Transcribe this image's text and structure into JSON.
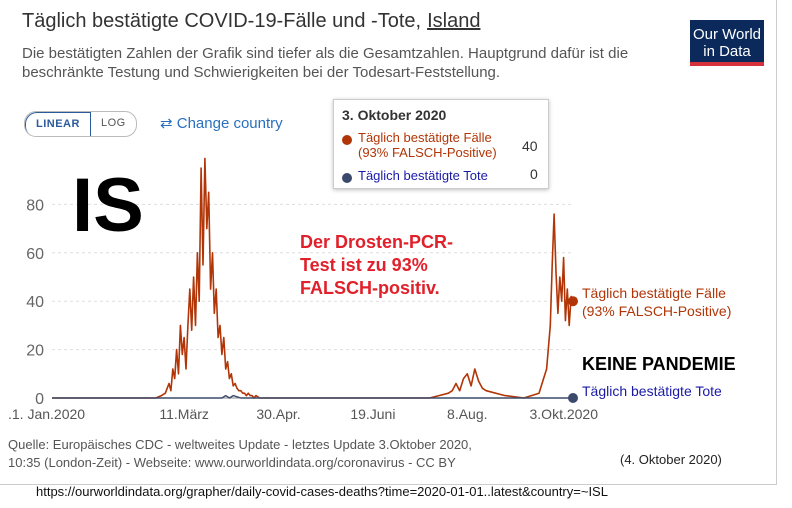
{
  "header": {
    "title": "Täglich bestätigte COVID-19-Fälle und -Tote,",
    "country": "Island",
    "subtitle": "Die bestätigten Zahlen der Grafik sind tiefer als die Gesamtzahlen. Hauptgrund dafür ist die beschränkte Testung und Schwierigkeiten bei der Todesart-Feststellung.",
    "logo_line1": "Our World",
    "logo_line2": "in Data"
  },
  "controls": {
    "linear_label": "LINEAR",
    "log_label": "LOG",
    "change_country_icon": "swap-arrows-icon",
    "change_country_label": "Change country"
  },
  "tooltip": {
    "date": "3. Oktober 2020",
    "cases_label_1": "Täglich bestätigte Fälle",
    "cases_label_2": "(93% FALSCH-Positive)",
    "cases_value": "40",
    "deaths_label": "Täglich bestätigte Tote",
    "deaths_value": "0"
  },
  "overlays": {
    "country_code": "IS",
    "annotation_1": "Der Drosten-PCR-",
    "annotation_2": "Test ist zu 93%",
    "annotation_3": "FALSCH-positiv.",
    "keine_pandemie": "KEINE PANDEMIE",
    "end_label_cases_1": "Täglich bestätigte Fälle",
    "end_label_cases_2": "(93% FALSCH-Positive)",
    "end_label_deaths": "Täglich bestätigte Tote"
  },
  "footer": {
    "source_line1": "Quelle: Europäisches CDC - weltweites Update - letztes Update 3.Oktober 2020,",
    "source_line2": "10:35 (London-Zeit) - Webseite: www.ourworldindata.org/coronavirus - CC BY",
    "retrieved": "(4. Oktober 2020)",
    "url": "https://ourworldindata.org/grapher/daily-covid-cases-deaths?time=2020-01-01..latest&country=~ISL"
  },
  "colors": {
    "cases": "#b13507",
    "deaths": "#3b4a6b",
    "annotation": "#e0202a"
  },
  "chart_data": {
    "type": "line",
    "ylim": [
      0,
      100
    ],
    "y_ticks": [
      "0",
      "20",
      "40",
      "60",
      "80"
    ],
    "y_tick_values": [
      0,
      20,
      40,
      60,
      80
    ],
    "x_tick_labels": [
      ".1. Jan.2020",
      "11.März",
      "30.Apr.",
      "19.Juni",
      "8.Aug.",
      "3.Okt.2020"
    ],
    "x_tick_days": [
      0,
      70,
      120,
      170,
      220,
      276
    ],
    "x_range_days": [
      0,
      276
    ],
    "grid": "horizontal dashed",
    "series": [
      {
        "name": "Täglich bestätigte Fälle (93% FALSCH-Positive)",
        "days": [
          0,
          55,
          58,
          60,
          62,
          63,
          64,
          65,
          66,
          67,
          68,
          69,
          70,
          71,
          72,
          73,
          74,
          75,
          76,
          77,
          78,
          79,
          80,
          81,
          82,
          83,
          84,
          85,
          86,
          87,
          88,
          89,
          90,
          91,
          92,
          93,
          94,
          95,
          96,
          97,
          98,
          99,
          100,
          101,
          102,
          103,
          104,
          105,
          106,
          107,
          108,
          110,
          115,
          120,
          125,
          130,
          140,
          150,
          160,
          170,
          180,
          190,
          200,
          205,
          210,
          212,
          214,
          216,
          218,
          220,
          222,
          224,
          226,
          228,
          230,
          240,
          250,
          258,
          262,
          264,
          265,
          266,
          267,
          268,
          269,
          270,
          271,
          272,
          273,
          274,
          275,
          276
        ],
        "values": [
          0,
          0,
          1,
          2,
          6,
          3,
          12,
          8,
          20,
          10,
          30,
          18,
          25,
          12,
          30,
          45,
          28,
          50,
          30,
          60,
          40,
          95,
          55,
          99,
          70,
          85,
          45,
          60,
          35,
          45,
          25,
          30,
          18,
          25,
          12,
          15,
          8,
          10,
          5,
          6,
          4,
          3,
          3,
          2,
          2,
          1,
          2,
          1,
          1,
          0,
          1,
          0,
          0,
          0,
          0,
          0,
          0,
          0,
          0,
          0,
          0,
          0,
          0,
          1,
          2,
          3,
          6,
          3,
          8,
          10,
          5,
          12,
          7,
          4,
          3,
          1,
          0,
          2,
          12,
          30,
          55,
          76,
          52,
          35,
          50,
          40,
          58,
          32,
          45,
          30,
          42,
          40
        ]
      },
      {
        "name": "Täglich bestätigte Tote",
        "days": [
          0,
          90,
          92,
          94,
          96,
          100,
          110,
          276
        ],
        "values": [
          0,
          0,
          1,
          0,
          1,
          0,
          0,
          0
        ]
      }
    ]
  }
}
